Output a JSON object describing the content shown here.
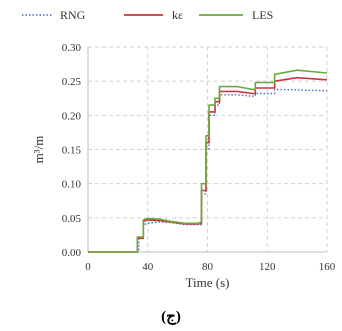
{
  "chart_data": {
    "type": "line",
    "xlabel": "Time (s)",
    "ylabel": "m³/m",
    "xlim": [
      0,
      160
    ],
    "ylim": [
      0,
      0.3
    ],
    "xticks": [
      0,
      40,
      80,
      120,
      160
    ],
    "yticks": [
      "0.00",
      "0.05",
      "0.10",
      "0.15",
      "0.20",
      "0.25",
      "0.30"
    ],
    "grid": true,
    "legend_position": "top",
    "caption": "(ج)",
    "series": [
      {
        "name": "RNG",
        "color": "#4a6fc4",
        "style": "dotted",
        "points": [
          [
            0,
            0
          ],
          [
            34,
            0
          ],
          [
            34,
            0.02
          ],
          [
            37,
            0.02
          ],
          [
            37,
            0.04
          ],
          [
            40,
            0.042
          ],
          [
            48,
            0.044
          ],
          [
            55,
            0.043
          ],
          [
            65,
            0.04
          ],
          [
            74,
            0.04
          ],
          [
            76,
            0.04
          ],
          [
            76,
            0.085
          ],
          [
            79,
            0.085
          ],
          [
            79,
            0.15
          ],
          [
            81,
            0.15
          ],
          [
            81,
            0.2
          ],
          [
            85,
            0.2
          ],
          [
            85,
            0.215
          ],
          [
            88,
            0.215
          ],
          [
            88,
            0.23
          ],
          [
            100,
            0.23
          ],
          [
            110,
            0.228
          ],
          [
            112,
            0.228
          ],
          [
            112,
            0.232
          ],
          [
            125,
            0.232
          ],
          [
            125,
            0.238
          ],
          [
            160,
            0.236
          ]
        ]
      },
      {
        "name": "kε",
        "color": "#c9363c",
        "style": "solid",
        "points": [
          [
            0,
            0
          ],
          [
            33,
            0
          ],
          [
            33,
            0.02
          ],
          [
            37,
            0.02
          ],
          [
            37,
            0.045
          ],
          [
            40,
            0.047
          ],
          [
            48,
            0.046
          ],
          [
            55,
            0.044
          ],
          [
            65,
            0.041
          ],
          [
            74,
            0.041
          ],
          [
            76,
            0.042
          ],
          [
            76,
            0.09
          ],
          [
            79,
            0.09
          ],
          [
            79,
            0.16
          ],
          [
            81,
            0.16
          ],
          [
            81,
            0.205
          ],
          [
            85,
            0.205
          ],
          [
            85,
            0.22
          ],
          [
            88,
            0.22
          ],
          [
            88,
            0.235
          ],
          [
            100,
            0.235
          ],
          [
            110,
            0.232
          ],
          [
            112,
            0.232
          ],
          [
            112,
            0.24
          ],
          [
            125,
            0.24
          ],
          [
            125,
            0.25
          ],
          [
            140,
            0.255
          ],
          [
            160,
            0.252
          ]
        ]
      },
      {
        "name": "LES",
        "color": "#6aaa3c",
        "style": "solid",
        "points": [
          [
            0,
            0
          ],
          [
            33,
            0
          ],
          [
            33,
            0.022
          ],
          [
            37,
            0.022
          ],
          [
            37,
            0.047
          ],
          [
            40,
            0.049
          ],
          [
            48,
            0.048
          ],
          [
            55,
            0.045
          ],
          [
            65,
            0.042
          ],
          [
            74,
            0.042
          ],
          [
            76,
            0.044
          ],
          [
            76,
            0.1
          ],
          [
            79,
            0.1
          ],
          [
            79,
            0.17
          ],
          [
            81,
            0.17
          ],
          [
            81,
            0.215
          ],
          [
            85,
            0.215
          ],
          [
            85,
            0.225
          ],
          [
            88,
            0.225
          ],
          [
            88,
            0.242
          ],
          [
            100,
            0.242
          ],
          [
            110,
            0.238
          ],
          [
            112,
            0.238
          ],
          [
            112,
            0.248
          ],
          [
            125,
            0.248
          ],
          [
            125,
            0.26
          ],
          [
            140,
            0.266
          ],
          [
            160,
            0.262
          ]
        ]
      }
    ]
  }
}
